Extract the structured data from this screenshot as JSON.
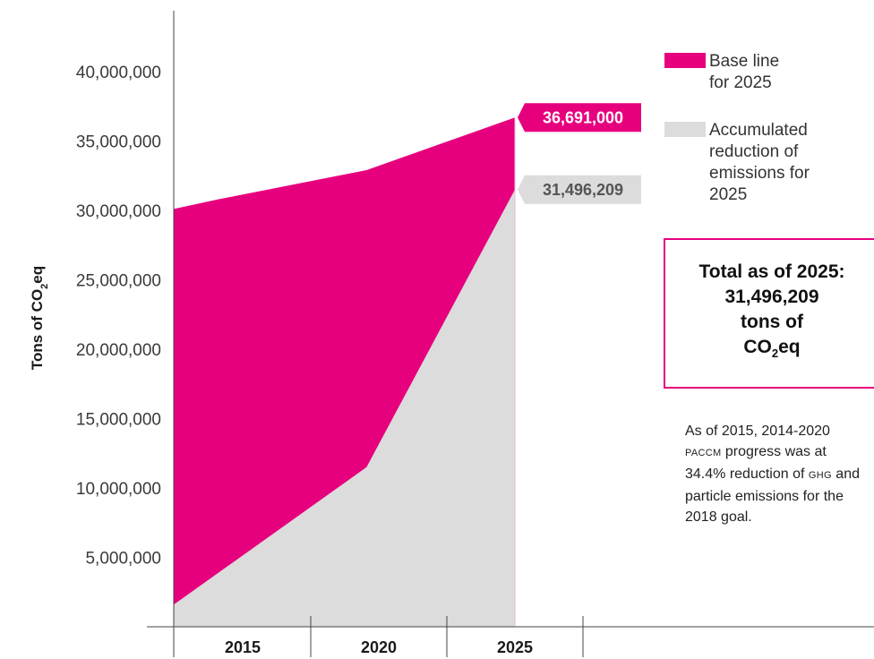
{
  "chart_data": {
    "type": "area",
    "ylabel": "Tons of CO2eq",
    "x_categories": [
      "2015",
      "2020",
      "2025"
    ],
    "y_ticks": [
      "5,000,000",
      "10,000,000",
      "15,000,000",
      "20,000,000",
      "25,000,000",
      "30,000,000",
      "35,000,000",
      "40,000,000"
    ],
    "ylim": [
      0,
      44000000
    ],
    "series": [
      {
        "name": "Base line for 2025",
        "color": "#e6007e",
        "points": [
          {
            "x": 2013.5,
            "y": 30100000
          },
          {
            "x": 2015,
            "y": 30800000
          },
          {
            "x": 2020,
            "y": 32900000
          },
          {
            "x": 2025,
            "y": 36691000
          }
        ]
      },
      {
        "name": "Accumulated reduction of emissions for 2025",
        "color": "#dcdcdc",
        "points": [
          {
            "x": 2013.5,
            "y": 1600000
          },
          {
            "x": 2020,
            "y": 11500000
          },
          {
            "x": 2025,
            "y": 31496209
          }
        ]
      }
    ],
    "annotations": [
      {
        "text": "36,691,000",
        "series": "Base line for 2025",
        "color": "#e6007e"
      },
      {
        "text": "31,496,209",
        "series": "Accumulated reduction of emissions for 2025",
        "color": "#dcdcdc"
      }
    ],
    "legend_position": "top-right"
  },
  "legend": {
    "baseline_label_1": "Base line",
    "baseline_label_2": "for 2025",
    "reduction_label_1": "Accumulated",
    "reduction_label_2": "reduction of",
    "reduction_label_3": "emissions for",
    "reduction_label_4": "2025"
  },
  "total_box": {
    "line1": "Total as of 2025:",
    "line2": "31,496,209",
    "line3": "tons of",
    "line4_prefix": "CO",
    "line4_sub": "2",
    "line4_suffix": "eq"
  },
  "ylabel_parts": {
    "prefix": "Tons of CO",
    "sub": "2",
    "suffix": "eq"
  },
  "note": {
    "part1": "As of 2015, 2014-2020",
    "abbr1": "PACCM",
    "part2": " progress was at 34.4% reduction of ",
    "abbr2": "GHG",
    "part3": " and particle emissions for the 2018 goal."
  }
}
